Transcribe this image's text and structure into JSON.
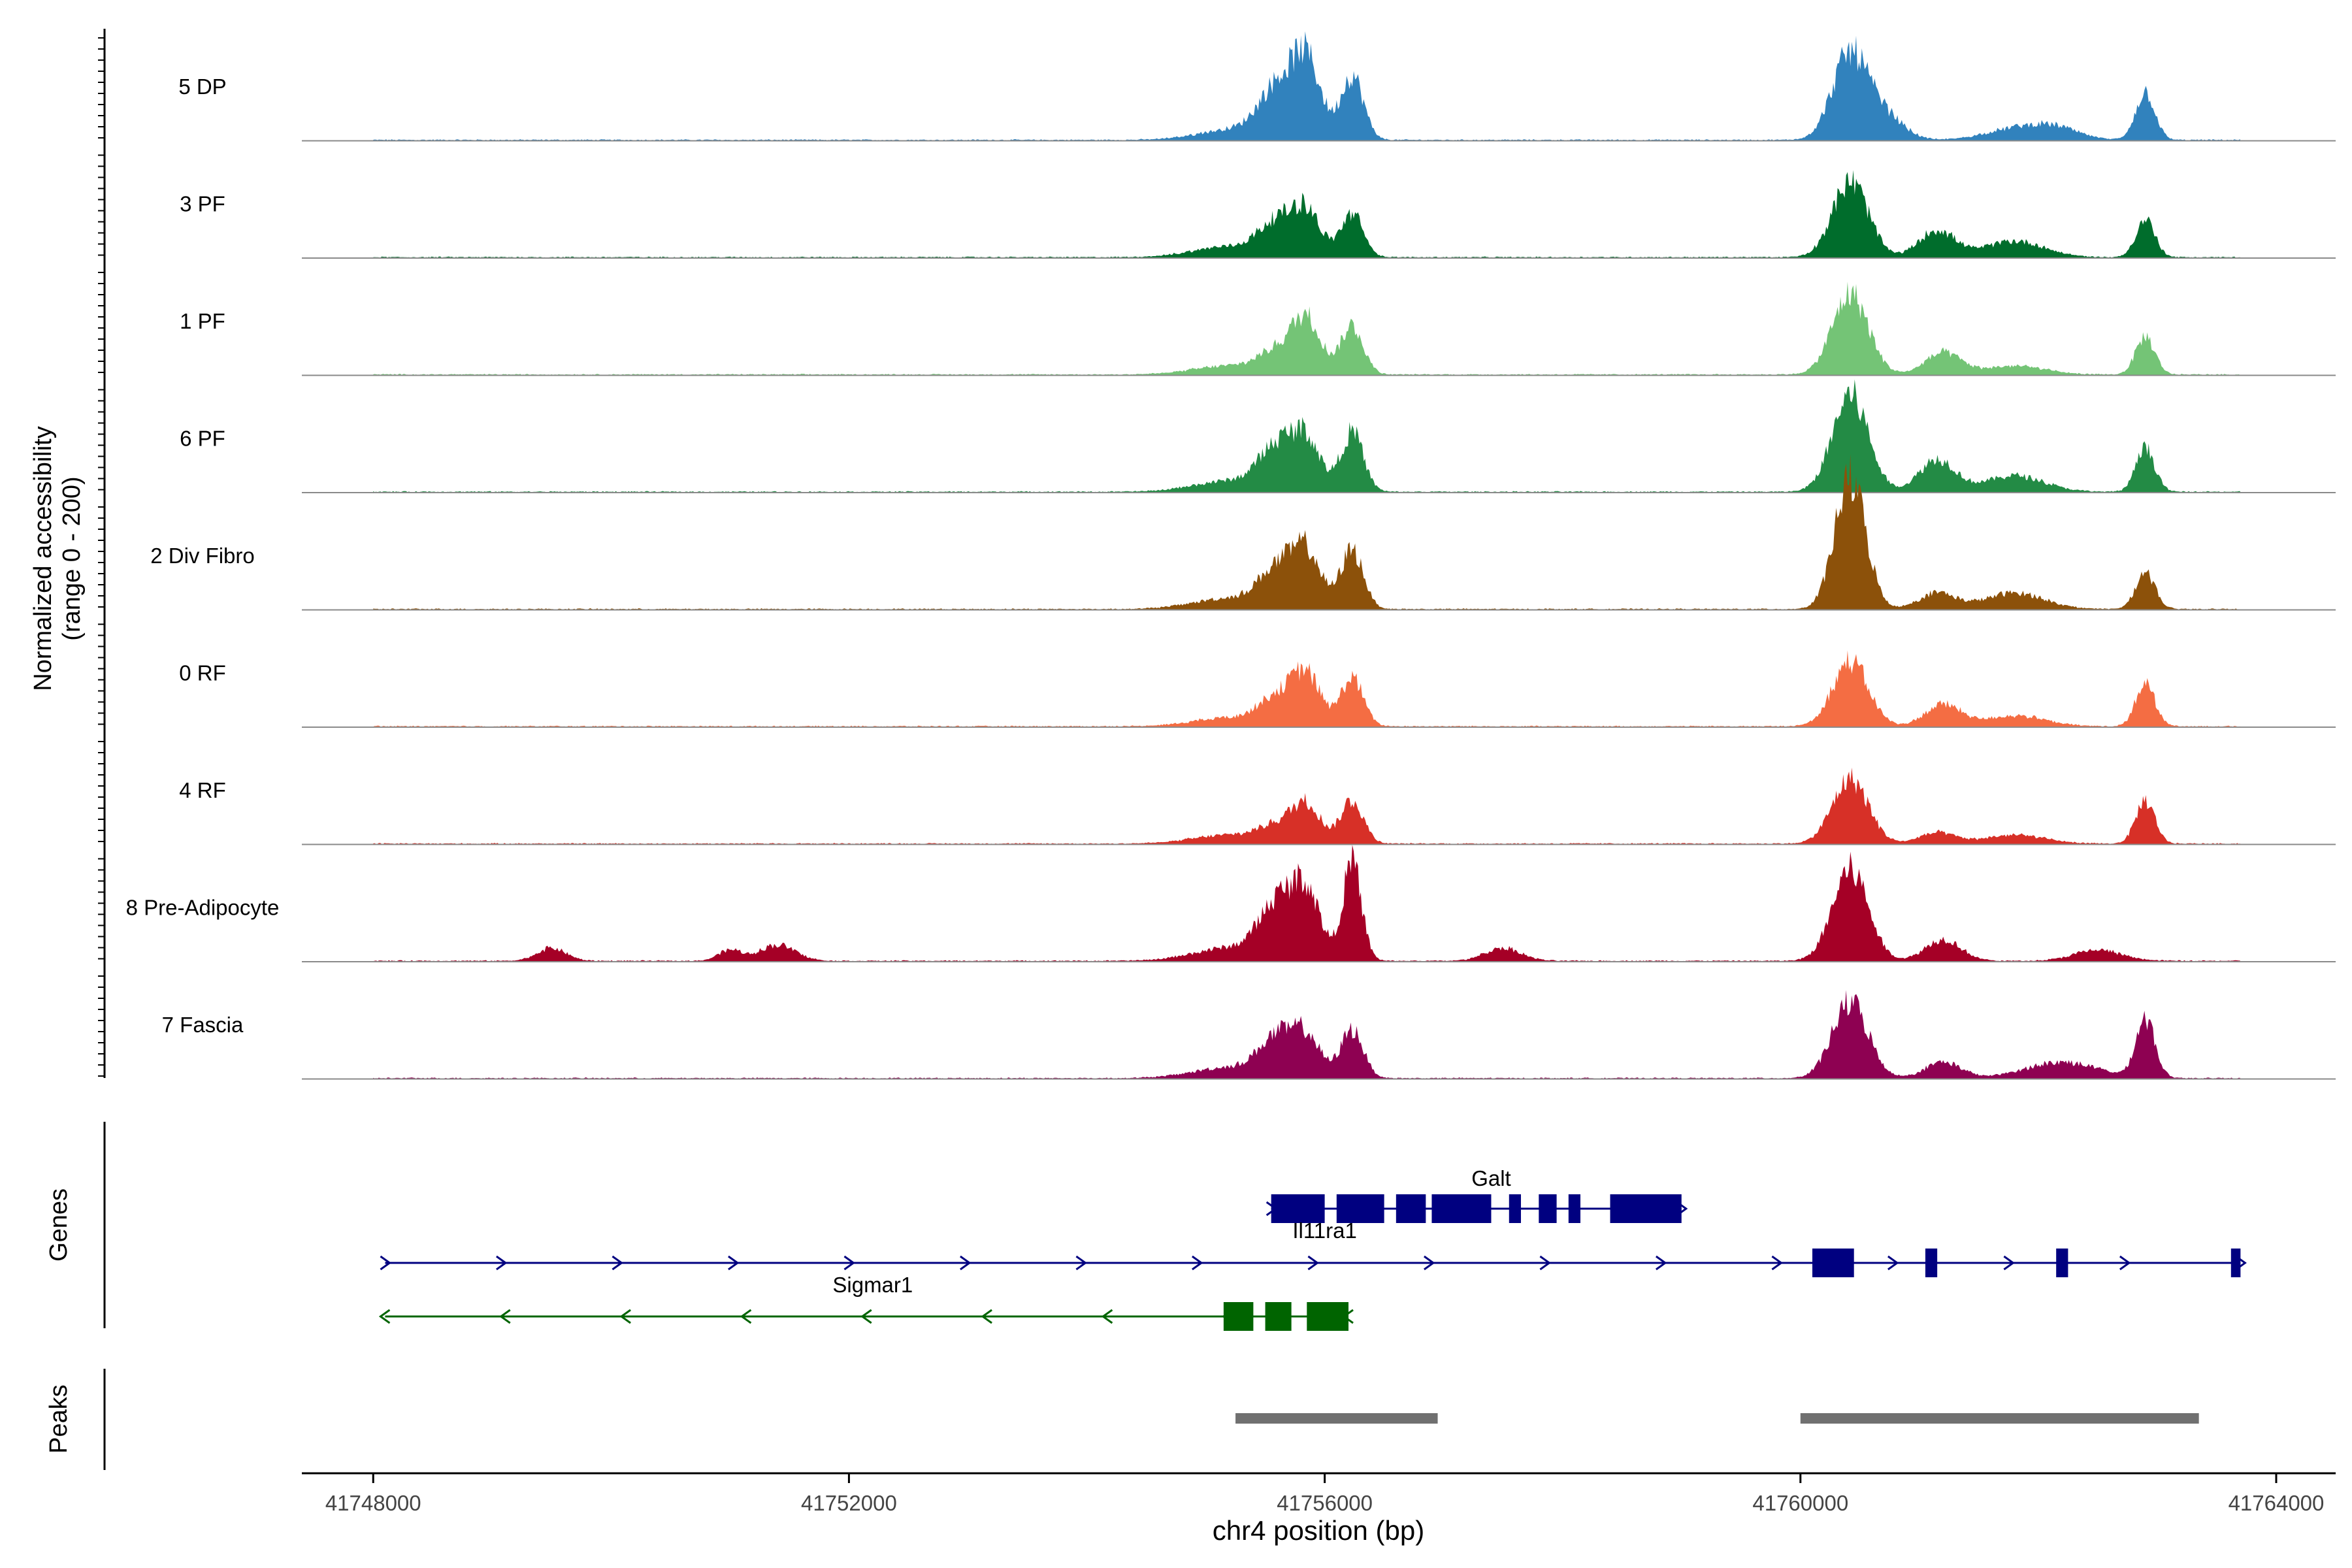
{
  "chart_data": {
    "type": "area",
    "title": "",
    "xlabel": "chr4 position (bp)",
    "ylabel_line1": "Normalized accessibility",
    "ylabel_line2": "(range 0 - 200)",
    "xlim": [
      41747400,
      41764500
    ],
    "x_ticks": [
      41748000,
      41752000,
      41756000,
      41760000,
      41764000
    ],
    "x_tick_labels": [
      "41748000",
      "41752000",
      "41756000",
      "41760000",
      "41764000"
    ],
    "data_start": 41748000,
    "data_end": 41763700,
    "y_range": [
      0,
      200
    ],
    "series": [
      {
        "name": "5 DP",
        "color": "#3182BD",
        "peaks": [
          [
            41755250,
            300,
            10
          ],
          [
            41755600,
            150,
            45
          ],
          [
            41755850,
            120,
            70
          ],
          [
            41756230,
            95,
            60
          ],
          [
            41760420,
            150,
            80
          ],
          [
            41760730,
            150,
            20
          ],
          [
            41761800,
            250,
            10
          ],
          [
            41762150,
            200,
            10
          ],
          [
            41762900,
            80,
            45
          ]
        ]
      },
      {
        "name": "3 PF",
        "color": "#006D2C",
        "peaks": [
          [
            41755200,
            300,
            10
          ],
          [
            41755600,
            150,
            30
          ],
          [
            41755850,
            120,
            40
          ],
          [
            41756230,
            95,
            40
          ],
          [
            41760420,
            150,
            70
          ],
          [
            41761150,
            150,
            25
          ],
          [
            41761800,
            250,
            15
          ],
          [
            41762900,
            80,
            35
          ]
        ]
      },
      {
        "name": "1 PF",
        "color": "#74C476",
        "peaks": [
          [
            41755200,
            300,
            8
          ],
          [
            41755600,
            150,
            20
          ],
          [
            41755850,
            120,
            50
          ],
          [
            41756230,
            95,
            45
          ],
          [
            41760420,
            150,
            75
          ],
          [
            41761200,
            150,
            20
          ],
          [
            41761800,
            250,
            8
          ],
          [
            41762900,
            80,
            35
          ]
        ]
      },
      {
        "name": "6 PF",
        "color": "#238B45",
        "peaks": [
          [
            41755200,
            300,
            10
          ],
          [
            41755600,
            150,
            40
          ],
          [
            41755850,
            120,
            45
          ],
          [
            41756230,
            95,
            55
          ],
          [
            41760420,
            150,
            90
          ],
          [
            41761150,
            150,
            30
          ],
          [
            41761800,
            250,
            15
          ],
          [
            41762900,
            80,
            40
          ]
        ]
      },
      {
        "name": "2 Div Fibro",
        "color": "#8C510A",
        "peaks": [
          [
            41755200,
            300,
            10
          ],
          [
            41755600,
            150,
            35
          ],
          [
            41755850,
            120,
            50
          ],
          [
            41756230,
            95,
            55
          ],
          [
            41760420,
            130,
            120
          ],
          [
            41761150,
            150,
            15
          ],
          [
            41761800,
            250,
            15
          ],
          [
            41762900,
            80,
            35
          ]
        ]
      },
      {
        "name": "0 RF",
        "color": "#F46D43",
        "peaks": [
          [
            41755200,
            300,
            8
          ],
          [
            41755600,
            150,
            25
          ],
          [
            41755850,
            120,
            45
          ],
          [
            41756230,
            95,
            45
          ],
          [
            41760420,
            150,
            60
          ],
          [
            41761200,
            150,
            20
          ],
          [
            41761800,
            250,
            10
          ],
          [
            41762900,
            80,
            40
          ]
        ]
      },
      {
        "name": "4 RF",
        "color": "#D73027",
        "peaks": [
          [
            41755200,
            300,
            8
          ],
          [
            41755600,
            150,
            15
          ],
          [
            41755850,
            120,
            35
          ],
          [
            41756230,
            95,
            40
          ],
          [
            41760420,
            150,
            60
          ],
          [
            41761150,
            150,
            10
          ],
          [
            41761800,
            250,
            8
          ],
          [
            41762900,
            80,
            40
          ]
        ]
      },
      {
        "name": "8 Pre-Adipocyte",
        "color": "#A50026",
        "peaks": [
          [
            41749500,
            120,
            12
          ],
          [
            41751000,
            100,
            10
          ],
          [
            41751400,
            150,
            15
          ],
          [
            41755200,
            300,
            12
          ],
          [
            41755600,
            150,
            50
          ],
          [
            41755850,
            120,
            60
          ],
          [
            41756230,
            80,
            90
          ],
          [
            41757500,
            150,
            12
          ],
          [
            41760420,
            150,
            85
          ],
          [
            41761200,
            150,
            20
          ],
          [
            41762500,
            200,
            10
          ]
        ]
      },
      {
        "name": "7 Fascia",
        "color": "#8E0152",
        "peaks": [
          [
            41755200,
            300,
            10
          ],
          [
            41755600,
            150,
            35
          ],
          [
            41755850,
            120,
            35
          ],
          [
            41756230,
            95,
            45
          ],
          [
            41760420,
            150,
            70
          ],
          [
            41761200,
            150,
            15
          ],
          [
            41762200,
            300,
            15
          ],
          [
            41762900,
            80,
            55
          ]
        ]
      }
    ],
    "genes_track": {
      "label": "Genes",
      "genes": [
        {
          "name": "Galt",
          "strand": "+",
          "color": "#000080",
          "start": 41755550,
          "end": 41759000,
          "exons": [
            [
              41755550,
              41756000
            ],
            [
              41756100,
              41756500
            ],
            [
              41756600,
              41756850
            ],
            [
              41756900,
              41757400
            ],
            [
              41757550,
              41757650
            ],
            [
              41757800,
              41757950
            ],
            [
              41758050,
              41758150
            ],
            [
              41758400,
              41759000
            ]
          ]
        },
        {
          "name": "Il11ra1",
          "strand": "+",
          "color": "#000080",
          "start": 41748100,
          "end": 41763700,
          "exons": [
            [
              41760100,
              41760450
            ],
            [
              41761050,
              41761150
            ],
            [
              41762150,
              41762250
            ],
            [
              41763620,
              41763700
            ]
          ]
        },
        {
          "name": "Sigmar1",
          "strand": "-",
          "color": "#006400",
          "start": 41748100,
          "end": 41756200,
          "exons": [
            [
              41755150,
              41755400
            ],
            [
              41755500,
              41755720
            ],
            [
              41755850,
              41756200
            ]
          ]
        }
      ]
    },
    "peaks_track": {
      "label": "Peaks",
      "color": "#707070",
      "regions": [
        [
          41755250,
          41756950
        ],
        [
          41760000,
          41763350
        ]
      ]
    }
  }
}
